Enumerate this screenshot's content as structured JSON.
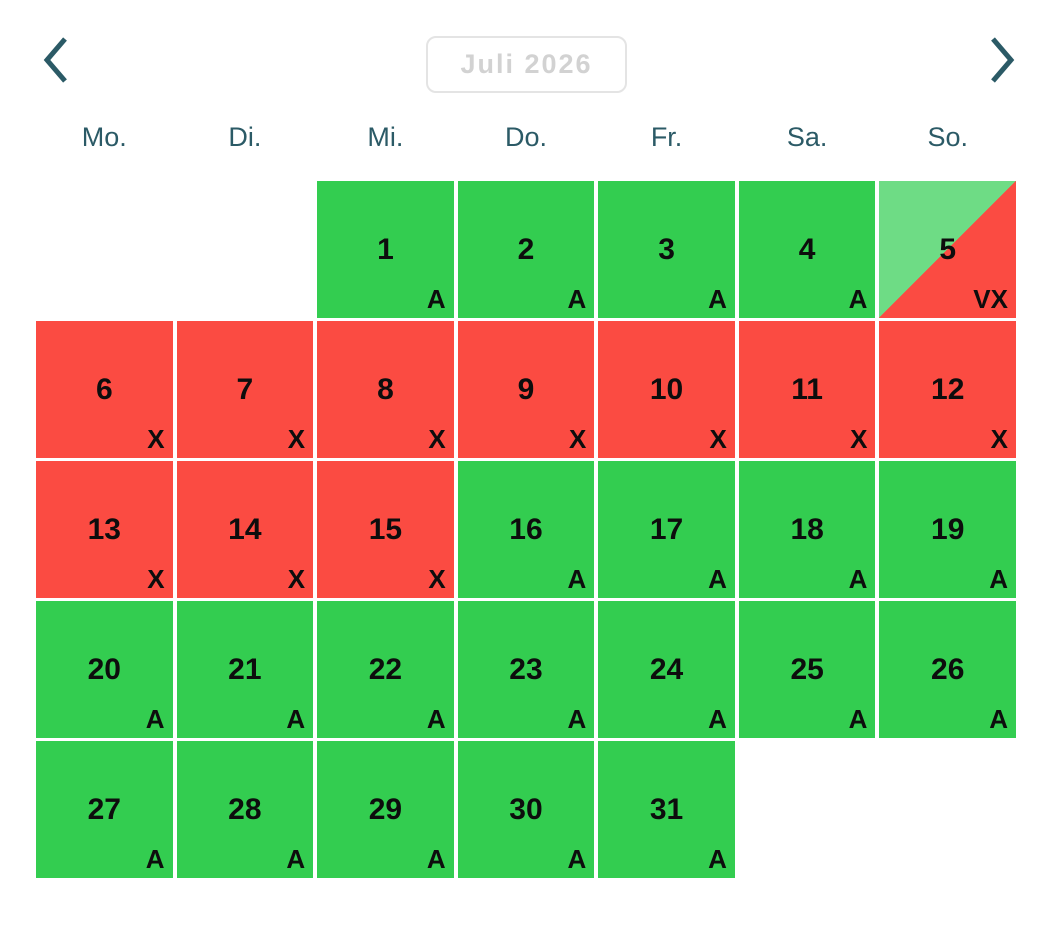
{
  "header": {
    "month_label": "Juli 2026",
    "prev_icon": "chevron-left",
    "next_icon": "chevron-right"
  },
  "weekdays": [
    "Mo.",
    "Di.",
    "Mi.",
    "Do.",
    "Fr.",
    "Sa.",
    "So."
  ],
  "status_codes": {
    "available": "A",
    "unavailable": "X",
    "partial": "VX"
  },
  "colors": {
    "available_green": "#33cd50",
    "partial_light_green": "#6edc85",
    "unavailable_red": "#fb4b42",
    "weekday_text": "#2b5a66",
    "chevron": "#2b5a66",
    "month_text": "#d2d2d2",
    "month_border": "#e4e4e4",
    "day_text": "#0d0d0d"
  },
  "calendar": {
    "cells": [
      {
        "day": "",
        "label": "",
        "status": "empty"
      },
      {
        "day": "",
        "label": "",
        "status": "empty"
      },
      {
        "day": "1",
        "label": "A",
        "status": "available"
      },
      {
        "day": "2",
        "label": "A",
        "status": "available"
      },
      {
        "day": "3",
        "label": "A",
        "status": "available"
      },
      {
        "day": "4",
        "label": "A",
        "status": "available"
      },
      {
        "day": "5",
        "label": "VX",
        "status": "partial"
      },
      {
        "day": "6",
        "label": "X",
        "status": "unavailable"
      },
      {
        "day": "7",
        "label": "X",
        "status": "unavailable"
      },
      {
        "day": "8",
        "label": "X",
        "status": "unavailable"
      },
      {
        "day": "9",
        "label": "X",
        "status": "unavailable"
      },
      {
        "day": "10",
        "label": "X",
        "status": "unavailable"
      },
      {
        "day": "11",
        "label": "X",
        "status": "unavailable"
      },
      {
        "day": "12",
        "label": "X",
        "status": "unavailable"
      },
      {
        "day": "13",
        "label": "X",
        "status": "unavailable"
      },
      {
        "day": "14",
        "label": "X",
        "status": "unavailable"
      },
      {
        "day": "15",
        "label": "X",
        "status": "unavailable"
      },
      {
        "day": "16",
        "label": "A",
        "status": "available"
      },
      {
        "day": "17",
        "label": "A",
        "status": "available"
      },
      {
        "day": "18",
        "label": "A",
        "status": "available"
      },
      {
        "day": "19",
        "label": "A",
        "status": "available"
      },
      {
        "day": "20",
        "label": "A",
        "status": "available"
      },
      {
        "day": "21",
        "label": "A",
        "status": "available"
      },
      {
        "day": "22",
        "label": "A",
        "status": "available"
      },
      {
        "day": "23",
        "label": "A",
        "status": "available"
      },
      {
        "day": "24",
        "label": "A",
        "status": "available"
      },
      {
        "day": "25",
        "label": "A",
        "status": "available"
      },
      {
        "day": "26",
        "label": "A",
        "status": "available"
      },
      {
        "day": "27",
        "label": "A",
        "status": "available"
      },
      {
        "day": "28",
        "label": "A",
        "status": "available"
      },
      {
        "day": "29",
        "label": "A",
        "status": "available"
      },
      {
        "day": "30",
        "label": "A",
        "status": "available"
      },
      {
        "day": "31",
        "label": "A",
        "status": "available"
      },
      {
        "day": "",
        "label": "",
        "status": "empty"
      },
      {
        "day": "",
        "label": "",
        "status": "empty"
      }
    ]
  }
}
